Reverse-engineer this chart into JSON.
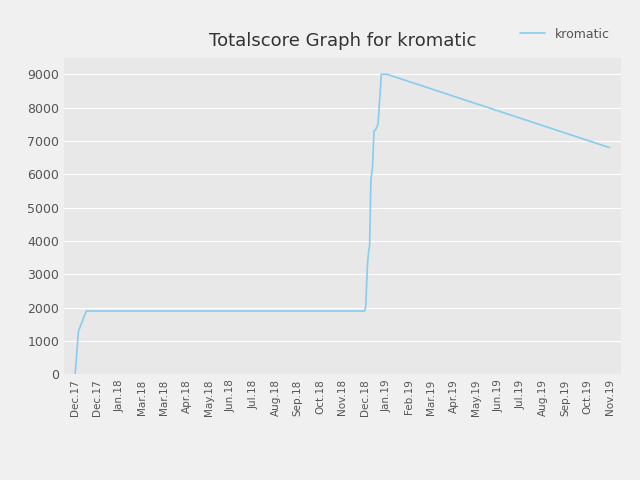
{
  "title": "Totalscore Graph for kromatic",
  "legend_label": "kromatic",
  "line_color": "#88ccee",
  "plot_bg_color": "#e8e8e8",
  "figure_color": "#f0f0f0",
  "grid_color": "#ffffff",
  "tick_color": "#555555",
  "title_fontsize": 13,
  "legend_fontsize": 9,
  "line_width": 1.2,
  "tick_labels": [
    "Dec.17",
    "Dec.17",
    "Jan.18",
    "Mar.18",
    "Mar.18",
    "Apr.18",
    "May.18",
    "Jun.18",
    "Jul.18",
    "Aug.18",
    "Sep.18",
    "Oct.18",
    "Nov.18",
    "Dec.18",
    "Jan.19",
    "Feb.19",
    "Mar.19",
    "Apr.19",
    "May.19",
    "Jun.19",
    "Jul.19",
    "Aug.19",
    "Sep.19",
    "Oct.19",
    "Nov.19"
  ],
  "x_data": [
    0,
    0.15,
    0.5,
    13,
    13.05,
    13.12,
    13.18,
    13.22,
    13.28,
    13.35,
    13.42,
    13.5,
    13.6,
    13.75,
    14.0,
    24
  ],
  "y_data": [
    0,
    1300,
    1900,
    1900,
    2050,
    3250,
    3700,
    3850,
    5850,
    6200,
    7300,
    7350,
    7500,
    9000,
    9000,
    6800
  ],
  "ylim": [
    0,
    9500
  ],
  "yticks": [
    0,
    1000,
    2000,
    3000,
    4000,
    5000,
    6000,
    7000,
    8000,
    9000
  ]
}
